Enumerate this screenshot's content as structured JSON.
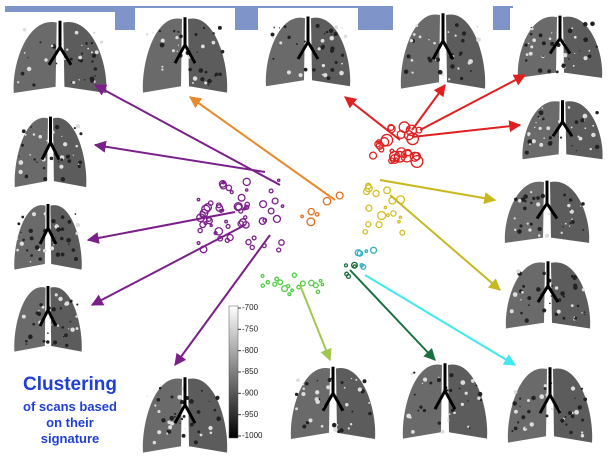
{
  "caption": {
    "title": "Clustering",
    "lines": [
      "of scans based",
      "on their",
      "signature"
    ]
  },
  "colorbar": {
    "ticks": [
      -700,
      -750,
      -800,
      -850,
      -900,
      -950,
      -1000
    ]
  }
}
